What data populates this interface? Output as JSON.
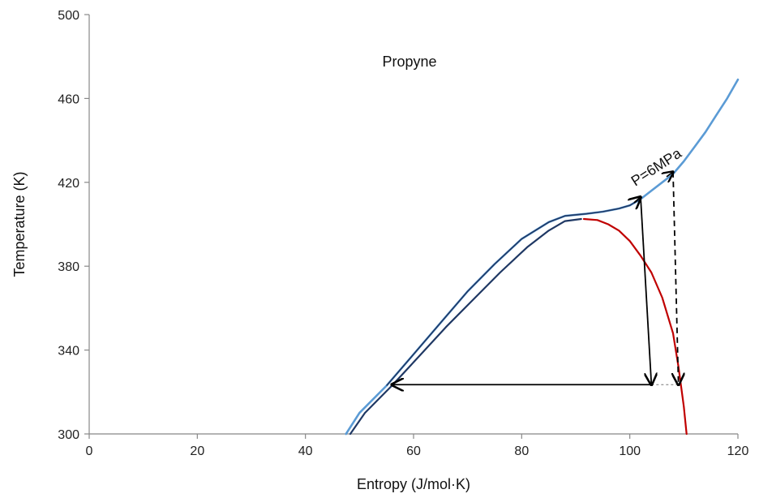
{
  "chart_data": {
    "type": "line",
    "title": "Propyne",
    "xlabel": "Entropy (J/mol·K)",
    "ylabel": "Temperature (K)",
    "xlim": [
      0,
      120
    ],
    "ylim": [
      300,
      500
    ],
    "xticks": [
      0,
      20,
      40,
      60,
      80,
      100,
      120
    ],
    "yticks": [
      300,
      340,
      380,
      420,
      460,
      500
    ],
    "grid": false,
    "colors": {
      "isobar": "#5b9bd5",
      "liquid_side": "#1f3864",
      "vapor_side": "#c00000",
      "process": "#000000"
    },
    "series": [
      {
        "points": [
          [
            47.5,
            300
          ],
          [
            50,
            310
          ],
          [
            55,
            323
          ],
          [
            60,
            338
          ],
          [
            65,
            353
          ],
          [
            70,
            368
          ],
          [
            75,
            381
          ],
          [
            80,
            393
          ],
          [
            85,
            401
          ],
          [
            88,
            404
          ],
          [
            92,
            405
          ],
          [
            95,
            406
          ],
          [
            98,
            407.5
          ],
          [
            100,
            409
          ],
          [
            102,
            412
          ],
          [
            104,
            416
          ],
          [
            106,
            420
          ],
          [
            108,
            424
          ],
          [
            110,
            430
          ],
          [
            112,
            437
          ],
          [
            114,
            444
          ],
          [
            116,
            452
          ],
          [
            118,
            460
          ],
          [
            120,
            469
          ]
        ]
      },
      {
        "points": [
          [
            48.3,
            300
          ],
          [
            51,
            310
          ],
          [
            56,
            323
          ],
          [
            61,
            337
          ],
          [
            66,
            351
          ],
          [
            71,
            364
          ],
          [
            76,
            377
          ],
          [
            81,
            389
          ],
          [
            85,
            397
          ],
          [
            88,
            401.5
          ],
          [
            91,
            402.5
          ]
        ]
      },
      {
        "points": [
          [
            91.5,
            402.5
          ],
          [
            94,
            402
          ],
          [
            96,
            400
          ],
          [
            98,
            397
          ],
          [
            100,
            392
          ],
          [
            102,
            385
          ],
          [
            104,
            377
          ],
          [
            106,
            365
          ],
          [
            108,
            348
          ],
          [
            109,
            332
          ],
          [
            110,
            313
          ],
          [
            110.5,
            300
          ]
        ]
      }
    ],
    "annotations": [
      {
        "text": "P=6MPa",
        "x": 101,
        "y": 418
      }
    ],
    "arrows": [
      {
        "from": [
          102,
          413
        ],
        "to": [
          104,
          323.5
        ],
        "style": "solid"
      },
      {
        "from": [
          104,
          323.5
        ],
        "to": [
          56,
          323.5
        ],
        "style": "solid"
      },
      {
        "from": [
          108,
          425
        ],
        "to": [
          109,
          323.5
        ],
        "style": "dashed"
      }
    ]
  }
}
